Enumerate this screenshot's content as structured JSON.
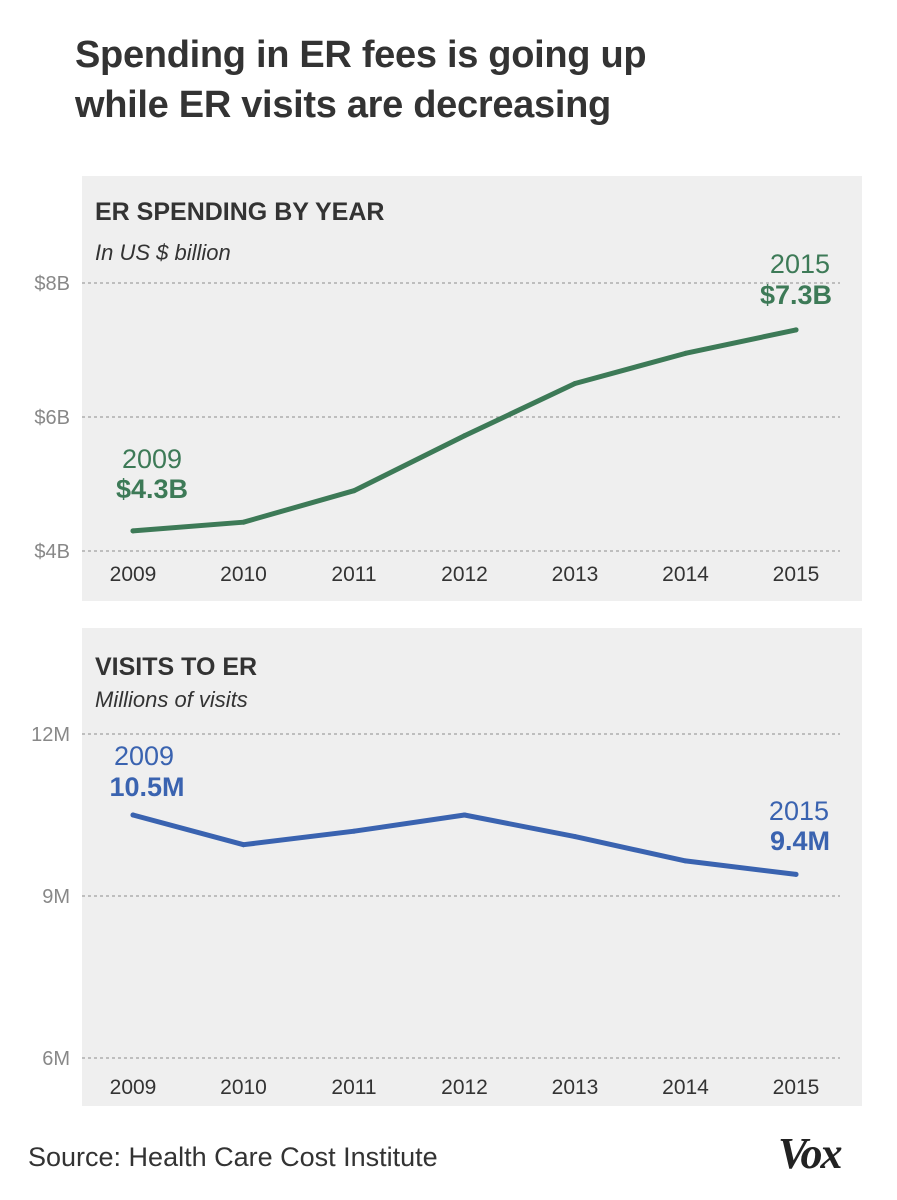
{
  "headline": {
    "line1": "Spending in ER fees is going up",
    "line2": "while ER visits are decreasing"
  },
  "source": "Source: Health Care Cost Institute",
  "logo": "Vox",
  "chart_data": [
    {
      "type": "line",
      "title": "ER SPENDING BY YEAR",
      "subtitle": "In US $ billion",
      "color": "#3d7a57",
      "x": [
        "2009",
        "2010",
        "2011",
        "2012",
        "2013",
        "2014",
        "2015"
      ],
      "values": [
        4.3,
        4.43,
        4.9,
        5.72,
        6.5,
        6.95,
        7.3
      ],
      "ylim": [
        4,
        8
      ],
      "yticks": [
        4,
        6,
        8
      ],
      "ytick_labels": [
        "$4B",
        "$6B",
        "$8B"
      ],
      "grid": true,
      "annotations": [
        {
          "year": "2009",
          "value": "$4.3B"
        },
        {
          "year": "2015",
          "value": "$7.3B"
        }
      ]
    },
    {
      "type": "line",
      "title": "VISITS TO ER",
      "subtitle": "Millions of visits",
      "color": "#3a63b0",
      "x": [
        "2009",
        "2010",
        "2011",
        "2012",
        "2013",
        "2014",
        "2015"
      ],
      "values": [
        10.5,
        9.95,
        10.2,
        10.5,
        10.1,
        9.65,
        9.4
      ],
      "ylim": [
        6,
        12
      ],
      "yticks": [
        6,
        9,
        12
      ],
      "ytick_labels": [
        "6M",
        "9M",
        "12M"
      ],
      "grid": true,
      "annotations": [
        {
          "year": "2009",
          "value": "10.5M"
        },
        {
          "year": "2015",
          "value": "9.4M"
        }
      ]
    }
  ]
}
